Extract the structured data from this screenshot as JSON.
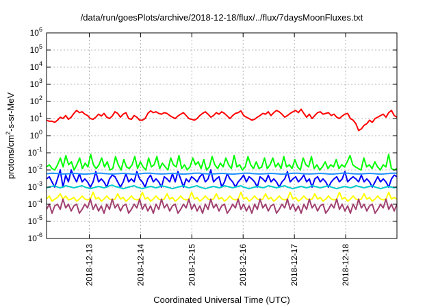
{
  "chart_data": {
    "type": "line",
    "title": "/data/run/goesPlots/archive/2018-12-18/flux/../flux/7daysMoonFluxes.txt",
    "xlabel": "Coordinated Universal Time (UTC)",
    "ylabel": "protons/cm²-s-sr-MeV",
    "log_y": true,
    "ylim_exp": [
      -6,
      6
    ],
    "xlim": [
      "2018-12-12T04:00",
      "2018-12-19T00:00"
    ],
    "x_ticks": [
      "2018-12-13",
      "2018-12-14",
      "2018-12-15",
      "2018-12-16",
      "2018-12-17",
      "2018-12-18"
    ],
    "grid": true,
    "legend": "none",
    "series": [
      {
        "color": "#ff0000",
        "values": [
          8,
          7,
          7,
          6,
          8,
          12,
          10,
          15,
          9,
          12,
          20,
          30,
          22,
          25,
          18,
          15,
          10,
          9,
          12,
          18,
          14,
          20,
          12,
          10,
          14,
          25,
          20,
          12,
          18,
          22,
          10,
          9,
          15,
          12,
          8,
          8,
          10,
          20,
          28,
          22,
          25,
          20,
          18,
          22,
          20,
          15,
          12,
          10,
          14,
          18,
          22,
          15,
          10,
          9,
          8,
          10,
          15,
          20,
          25,
          18,
          12,
          15,
          22,
          18,
          25,
          20,
          14,
          10,
          15,
          20,
          22,
          28,
          15,
          12,
          10,
          8,
          9,
          12,
          15,
          20,
          18,
          25,
          15,
          22,
          30,
          25,
          18,
          12,
          15,
          20,
          25,
          30,
          22,
          35,
          20,
          12,
          18,
          10,
          15,
          22,
          25,
          18,
          20,
          22,
          15,
          18,
          12,
          10,
          14,
          18,
          20,
          10,
          8,
          5,
          2,
          2.5,
          4,
          5,
          8,
          6,
          10,
          12,
          15,
          18,
          12,
          22,
          30,
          15,
          12
        ]
      },
      {
        "color": "#00ff00",
        "values": [
          0.015,
          0.02,
          0.012,
          0.01,
          0.02,
          0.05,
          0.015,
          0.07,
          0.02,
          0.03,
          0.01,
          0.02,
          0.05,
          0.012,
          0.025,
          0.015,
          0.08,
          0.02,
          0.012,
          0.02,
          0.05,
          0.015,
          0.03,
          0.01,
          0.012,
          0.06,
          0.02,
          0.01,
          0.04,
          0.015,
          0.012,
          0.02,
          0.06,
          0.012,
          0.03,
          0.015,
          0.01,
          0.05,
          0.015,
          0.02,
          0.06,
          0.012,
          0.025,
          0.015,
          0.01,
          0.05,
          0.02,
          0.015,
          0.07,
          0.012,
          0.02,
          0.01,
          0.015,
          0.05,
          0.02,
          0.03,
          0.012,
          0.04,
          0.01,
          0.015,
          0.06,
          0.02,
          0.012,
          0.025,
          0.015,
          0.05,
          0.02,
          0.012,
          0.07,
          0.015,
          0.02,
          0.01,
          0.015,
          0.06,
          0.02,
          0.012,
          0.03,
          0.012,
          0.015,
          0.05,
          0.012,
          0.02,
          0.05,
          0.015,
          0.025,
          0.012,
          0.06,
          0.015,
          0.02,
          0.012,
          0.04,
          0.015,
          0.01,
          0.05,
          0.02,
          0.015,
          0.06,
          0.012,
          0.02,
          0.01,
          0.015,
          0.03,
          0.012,
          0.02,
          0.015,
          0.04,
          0.012,
          0.02,
          0.015,
          0.03,
          0.07,
          0.02,
          0.015,
          0.012,
          0.01,
          0.05,
          0.015,
          0.02,
          0.012,
          0.03,
          0.015,
          0.01,
          0.02,
          0.015,
          0.08,
          0.012,
          0.01,
          0.012
        ]
      },
      {
        "color": "#0000ff",
        "values": [
          0.003,
          0.004,
          0.002,
          0.001,
          0.003,
          0.01,
          0.001,
          0.005,
          0.002,
          0.01,
          0.004,
          0.002,
          0.006,
          0.002,
          0.003,
          0.002,
          0.001,
          0.002,
          0.008,
          0.002,
          0.003,
          0.002,
          0.001,
          0.003,
          0.005,
          0.004,
          0.002,
          0.001,
          0.002,
          0.006,
          0.002,
          0.003,
          0.002,
          0.008,
          0.003,
          0.002,
          0.001,
          0.003,
          0.005,
          0.002,
          0.003,
          0.002,
          0.001,
          0.004,
          0.003,
          0.002,
          0.006,
          0.002,
          0.008,
          0.003,
          0.001,
          0.003,
          0.002,
          0.004,
          0.003,
          0.002,
          0.004,
          0.006,
          0.002,
          0.003,
          0.01,
          0.002,
          0.003,
          0.004,
          0.001,
          0.002,
          0.006,
          0.003,
          0.002,
          0.001,
          0.002,
          0.003,
          0.005,
          0.002,
          0.004,
          0.003,
          0.002,
          0.001,
          0.004,
          0.003,
          0.002,
          0.005,
          0.002,
          0.003,
          0.002,
          0.001,
          0.002,
          0.003,
          0.008,
          0.002,
          0.003,
          0.004,
          0.002,
          0.003,
          0.005,
          0.002,
          0.003,
          0.001,
          0.003,
          0.004,
          0.002,
          0.003,
          0.002,
          0.001,
          0.002,
          0.003,
          0.004,
          0.002,
          0.003,
          0.008,
          0.002,
          0.003,
          0.004,
          0.003,
          0.002,
          0.005,
          0.002,
          0.003,
          0.002,
          0.001,
          0.002,
          0.004,
          0.002,
          0.003,
          0.002,
          0.001,
          0.003,
          0.005,
          0.004
        ]
      },
      {
        "color": "#00cccc",
        "values": [
          0.0009,
          0.001,
          0.0011,
          0.0012,
          0.001,
          0.0009,
          0.001,
          0.0012,
          0.0011,
          0.001,
          0.0009,
          0.001,
          0.0011,
          0.0012,
          0.001,
          0.0009,
          0.0008,
          0.0009,
          0.001,
          0.0011,
          0.001,
          0.0009,
          0.001,
          0.0012,
          0.0013,
          0.0011,
          0.001,
          0.0009,
          0.0008,
          0.0009,
          0.001,
          0.0011,
          0.0012,
          0.001,
          0.0009,
          0.0008,
          0.0009,
          0.001,
          0.0011,
          0.001,
          0.0009,
          0.001,
          0.0012,
          0.0011,
          0.001,
          0.0009,
          0.0008,
          0.0009,
          0.001,
          0.0011,
          0.0012,
          0.001,
          0.0009,
          0.001,
          0.0011,
          0.0012,
          0.001,
          0.0009,
          0.0008,
          0.0009,
          0.001,
          0.0011,
          0.001,
          0.0009,
          0.001,
          0.0012,
          0.0011,
          0.001,
          0.0009,
          0.001,
          0.0011,
          0.0012,
          0.001,
          0.0009,
          0.0008,
          0.0009,
          0.001,
          0.0011,
          0.001,
          0.0009,
          0.001,
          0.0012,
          0.0011,
          0.001,
          0.0009,
          0.001,
          0.0011,
          0.0012,
          0.001,
          0.0009,
          0.0008,
          0.0009,
          0.001,
          0.0011,
          0.001,
          0.0009,
          0.001,
          0.0012,
          0.0011,
          0.001,
          0.0009,
          0.001,
          0.0011,
          0.0012,
          0.001,
          0.0009,
          0.0008,
          0.0009,
          0.001,
          0.0011,
          0.001,
          0.0009,
          0.001,
          0.0012,
          0.0011,
          0.001,
          0.0009,
          0.001,
          0.0011,
          0.0012,
          0.001,
          0.0009,
          0.0008,
          0.0009,
          0.001,
          0.0011,
          0.001,
          0.0009,
          0.001
        ]
      },
      {
        "color": "#1e90ff",
        "values": [
          0.006,
          0.0062,
          0.0064,
          0.0063,
          0.0062,
          0.006,
          0.0058,
          0.0059,
          0.006,
          0.0062,
          0.0063,
          0.0062,
          0.006,
          0.0058,
          0.0057,
          0.0058,
          0.006,
          0.0062,
          0.0064,
          0.0065,
          0.0064,
          0.0062,
          0.006,
          0.0059,
          0.0058,
          0.0059,
          0.006,
          0.0062,
          0.0063,
          0.0062,
          0.006,
          0.0058,
          0.0057,
          0.0058,
          0.006,
          0.0062,
          0.0064,
          0.0065,
          0.0064,
          0.0062,
          0.006,
          0.0059,
          0.0058,
          0.0059,
          0.006,
          0.0062,
          0.0063,
          0.0062,
          0.006,
          0.0058,
          0.0057,
          0.0058,
          0.006,
          0.0062,
          0.0064,
          0.0065,
          0.0064,
          0.0062,
          0.006,
          0.0059,
          0.0058,
          0.0059,
          0.006,
          0.0062,
          0.0063,
          0.0062,
          0.006,
          0.0058,
          0.0057,
          0.0058,
          0.006,
          0.0062,
          0.0064,
          0.0065,
          0.0064,
          0.0062,
          0.006,
          0.0059,
          0.0058,
          0.0059,
          0.006,
          0.0062,
          0.0063,
          0.0062,
          0.006,
          0.0058,
          0.0057,
          0.0058,
          0.006,
          0.0062,
          0.0064,
          0.0065,
          0.0064,
          0.0062,
          0.006,
          0.0059,
          0.0058,
          0.0059,
          0.006,
          0.0062,
          0.0063,
          0.0062,
          0.006,
          0.0058,
          0.0057,
          0.0058,
          0.006,
          0.0062,
          0.0064,
          0.0065,
          0.0064,
          0.0062,
          0.006,
          0.0059,
          0.0058,
          0.0059,
          0.006,
          0.0062,
          0.0063,
          0.0062,
          0.006,
          0.0058,
          0.0057,
          0.0058,
          0.006,
          0.0062,
          0.0064,
          0.0065,
          0.0064
        ]
      },
      {
        "color": "#ffff00",
        "values": [
          0.0002,
          0.0003,
          0.00015,
          0.0002,
          0.00025,
          0.0004,
          0.0002,
          0.0003,
          0.00018,
          0.0002,
          0.00025,
          0.00015,
          0.0002,
          0.0003,
          0.0002,
          0.00018,
          0.0002,
          0.0005,
          0.0002,
          0.00025,
          0.00015,
          0.0002,
          0.0003,
          0.0002,
          0.00018,
          0.0002,
          0.0004,
          0.0002,
          0.00025,
          0.00015,
          0.0002,
          0.0003,
          0.0002,
          0.00018,
          0.0002,
          0.0005,
          0.0002,
          0.00025,
          0.00015,
          0.0002,
          0.0003,
          0.0002,
          0.00018,
          0.0002,
          0.0004,
          0.0002,
          0.00025,
          0.00015,
          0.0002,
          0.0003,
          0.0002,
          0.00018,
          0.0002,
          0.0005,
          0.0002,
          0.00025,
          0.00015,
          0.0002,
          0.0003,
          0.0002,
          0.00018,
          0.0002,
          0.0004,
          0.0002,
          0.00025,
          0.00015,
          0.0002,
          0.0003,
          0.0002,
          0.00018,
          0.0002,
          0.0005,
          0.0002,
          0.00025,
          0.00015,
          0.0002,
          0.0003,
          0.0002,
          0.00018,
          0.0002,
          0.0004,
          0.0002,
          0.00025,
          0.00015,
          0.0002,
          0.0003,
          0.0002,
          0.00018,
          0.0002,
          0.0005,
          0.0002,
          0.00025,
          0.00015,
          0.0002,
          0.0003,
          0.0002,
          0.00018,
          0.0002,
          0.0004,
          0.0002,
          0.00025,
          0.00015,
          0.0002,
          0.0003,
          0.0002,
          0.00018,
          0.0002,
          0.0005,
          0.0002,
          0.00025,
          0.00015,
          0.0002,
          0.0003,
          0.0002,
          0.00018,
          0.0002,
          0.0004,
          0.0002,
          0.00025,
          0.00015,
          0.0002,
          0.0003,
          0.0002,
          0.00018,
          0.0002,
          0.0005,
          0.0002,
          0.00025,
          0.0002
        ]
      },
      {
        "color": "#a04070",
        "values": [
          5e-05,
          0.0001,
          3e-05,
          8e-05,
          0.0001,
          5e-05,
          0.0002,
          6e-05,
          0.0001,
          4e-05,
          8e-05,
          0.0001,
          3e-05,
          5e-05,
          0.0001,
          6e-05,
          0.0002,
          5e-05,
          0.0001,
          4e-05,
          8e-05,
          3e-05,
          0.0001,
          5e-05,
          0.0002,
          6e-05,
          0.0001,
          4e-05,
          8e-05,
          0.0001,
          3e-05,
          5e-05,
          0.0001,
          6e-05,
          0.0002,
          5e-05,
          0.0001,
          4e-05,
          8e-05,
          3e-05,
          0.0001,
          5e-05,
          0.0002,
          6e-05,
          0.0001,
          4e-05,
          8e-05,
          0.0001,
          3e-05,
          5e-05,
          0.0001,
          6e-05,
          0.0002,
          5e-05,
          0.0001,
          4e-05,
          8e-05,
          3e-05,
          0.0001,
          5e-05,
          0.0002,
          6e-05,
          0.0001,
          4e-05,
          8e-05,
          0.0001,
          3e-05,
          5e-05,
          0.0001,
          6e-05,
          0.0002,
          5e-05,
          0.0001,
          4e-05,
          8e-05,
          3e-05,
          0.0001,
          5e-05,
          0.0002,
          6e-05,
          0.0001,
          4e-05,
          8e-05,
          0.0001,
          3e-05,
          5e-05,
          0.0001,
          6e-05,
          0.0002,
          5e-05,
          0.0001,
          4e-05,
          8e-05,
          3e-05,
          0.0001,
          5e-05,
          0.0002,
          6e-05,
          0.0001,
          4e-05,
          8e-05,
          0.0001,
          3e-05,
          5e-05,
          0.0001,
          6e-05,
          0.0002,
          5e-05,
          0.0001,
          4e-05,
          8e-05,
          3e-05,
          0.0001,
          5e-05,
          0.0002,
          6e-05,
          0.0001,
          4e-05,
          8e-05,
          0.0001,
          3e-05,
          5e-05,
          0.0001,
          6e-05,
          0.0002,
          5e-05,
          0.0001,
          4e-05,
          0.0001
        ]
      }
    ]
  }
}
